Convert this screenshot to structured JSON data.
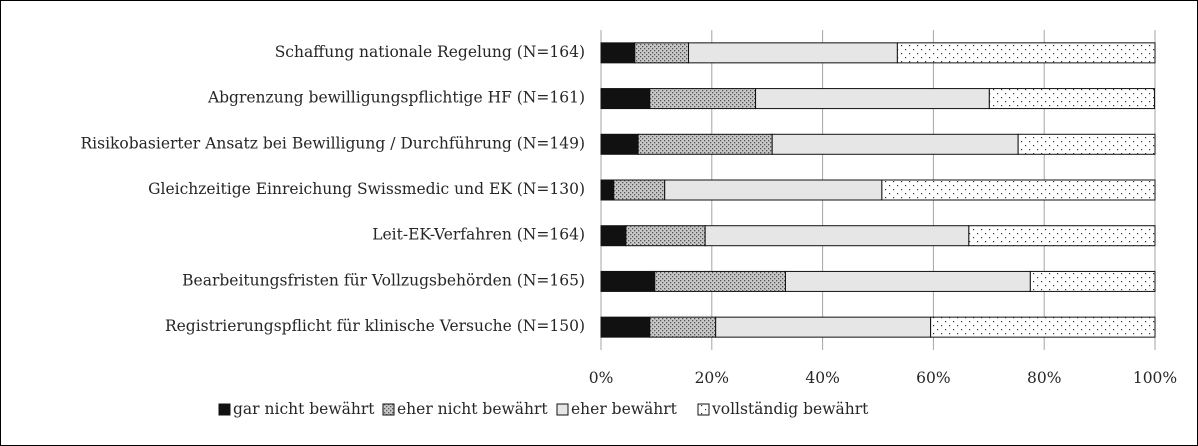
{
  "chart_data": {
    "type": "stacked_bar_horizontal",
    "categories": [
      "Schaffung nationale Regelung (N=164)",
      "Abgrenzung bewilligungspflichtige HF (N=161)",
      "Risikobasierter Ansatz bei Bewilligung / Durchführung (N=149)",
      "Gleichzeitige Einreichung Swissmedic und EK (N=130)",
      "Leit-EK-Verfahren (N=164)",
      "Bearbeitungsfristen für Vollzugsbehörden (N=165)",
      "Registrierungspflicht für klinische Versuche (N=150)"
    ],
    "series": [
      {
        "name": "gar nicht bewährt",
        "color": "#111111",
        "values": [
          6.1,
          8.8,
          6.7,
          2.3,
          4.5,
          9.7,
          8.8
        ]
      },
      {
        "name": "eher nicht bewährt",
        "color": "#c8c8c8",
        "values": [
          9.7,
          19.1,
          24.2,
          9.2,
          14.3,
          23.6,
          11.9
        ]
      },
      {
        "name": "eher bewährt",
        "color": "#e6e6e6",
        "values": [
          37.7,
          42.2,
          44.4,
          39.2,
          47.6,
          44.2,
          38.8
        ]
      },
      {
        "name": "vollständig bewährt",
        "color": "#ffffff",
        "values": [
          46.5,
          29.8,
          24.7,
          49.3,
          33.6,
          22.5,
          40.5
        ]
      }
    ],
    "xlim": [
      0,
      100
    ],
    "xticks": [
      {
        "value": 0,
        "label": "0%"
      },
      {
        "value": 20,
        "label": "20%"
      },
      {
        "value": 40,
        "label": "40%"
      },
      {
        "value": 60,
        "label": "60%"
      },
      {
        "value": 80,
        "label": "80%"
      },
      {
        "value": 100,
        "label": "100%"
      }
    ],
    "grid": true,
    "legend": "bottom"
  }
}
